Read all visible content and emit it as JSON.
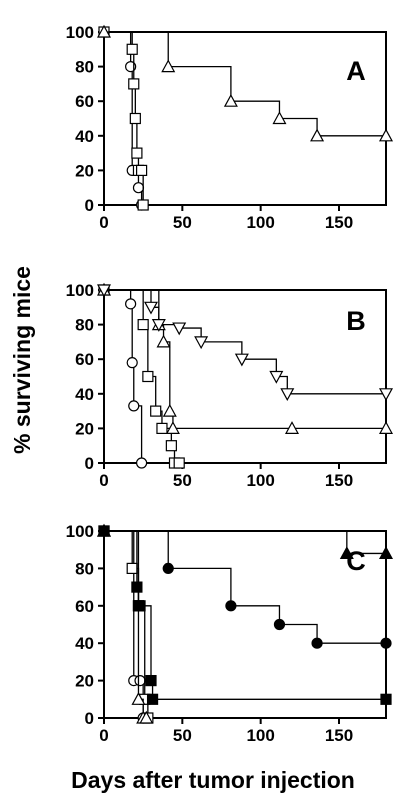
{
  "chart_data": [
    {
      "type": "line",
      "panel": "A",
      "xlim": [
        0,
        180
      ],
      "ylim": [
        0,
        100
      ],
      "xticks": [
        0,
        50,
        100,
        150
      ],
      "yticks": [
        0,
        20,
        40,
        60,
        80,
        100
      ],
      "series": [
        {
          "marker": "circle",
          "filled": false,
          "x": [
            0,
            17,
            18,
            22,
            24
          ],
          "y": [
            100,
            80,
            20,
            10,
            0
          ]
        },
        {
          "marker": "square",
          "filled": false,
          "x": [
            0,
            18,
            19,
            20,
            21,
            22,
            24,
            25
          ],
          "y": [
            100,
            90,
            70,
            50,
            30,
            20,
            20,
            0
          ]
        },
        {
          "marker": "triangle-up",
          "filled": false,
          "x": [
            0,
            41,
            81,
            112,
            136,
            180
          ],
          "y": [
            100,
            80,
            60,
            50,
            40,
            40
          ]
        }
      ]
    },
    {
      "type": "line",
      "panel": "B",
      "xlim": [
        0,
        180
      ],
      "ylim": [
        0,
        100
      ],
      "xticks": [
        0,
        50,
        100,
        150
      ],
      "yticks": [
        0,
        20,
        40,
        60,
        80,
        100
      ],
      "series": [
        {
          "marker": "circle",
          "filled": false,
          "x": [
            0,
            17,
            18,
            19,
            24
          ],
          "y": [
            100,
            92,
            58,
            33,
            0
          ]
        },
        {
          "marker": "square",
          "filled": false,
          "x": [
            0,
            25,
            28,
            33,
            37,
            43,
            45,
            48
          ],
          "y": [
            100,
            80,
            50,
            30,
            20,
            10,
            0,
            0
          ]
        },
        {
          "marker": "triangle-up",
          "filled": false,
          "x": [
            0,
            35,
            38,
            42,
            44,
            120,
            180
          ],
          "y": [
            100,
            80,
            70,
            30,
            20,
            20,
            20
          ]
        },
        {
          "marker": "triangle-down",
          "filled": false,
          "x": [
            0,
            30,
            35,
            48,
            62,
            88,
            110,
            117,
            180
          ],
          "y": [
            100,
            90,
            80,
            78,
            70,
            60,
            50,
            40,
            40
          ]
        }
      ]
    },
    {
      "type": "line",
      "panel": "C",
      "xlim": [
        0,
        180
      ],
      "ylim": [
        0,
        100
      ],
      "xticks": [
        0,
        50,
        100,
        150
      ],
      "yticks": [
        0,
        20,
        40,
        60,
        80,
        100
      ],
      "series": [
        {
          "marker": "circle",
          "filled": false,
          "x": [
            0,
            19,
            23,
            25
          ],
          "y": [
            100,
            20,
            20,
            0
          ]
        },
        {
          "marker": "square",
          "filled": false,
          "x": [
            0,
            18,
            22,
            26,
            28
          ],
          "y": [
            100,
            80,
            60,
            10,
            0
          ]
        },
        {
          "marker": "triangle-up",
          "filled": false,
          "x": [
            0,
            22,
            25,
            27
          ],
          "y": [
            100,
            10,
            0,
            0
          ]
        },
        {
          "marker": "square",
          "filled": true,
          "x": [
            0,
            21,
            22,
            23,
            30,
            31,
            180
          ],
          "y": [
            100,
            70,
            60,
            60,
            20,
            10,
            10
          ]
        },
        {
          "marker": "circle",
          "filled": true,
          "x": [
            0,
            41,
            81,
            112,
            136,
            180
          ],
          "y": [
            100,
            80,
            60,
            50,
            40,
            40
          ]
        },
        {
          "marker": "triangle-up",
          "filled": true,
          "x": [
            0,
            155,
            180
          ],
          "y": [
            100,
            88,
            88
          ]
        }
      ]
    }
  ],
  "labels": {
    "panel_a": "A",
    "panel_b": "B",
    "panel_c": "C",
    "ylabel": "% surviving mice",
    "xlabel": "Days after tumor injection"
  }
}
